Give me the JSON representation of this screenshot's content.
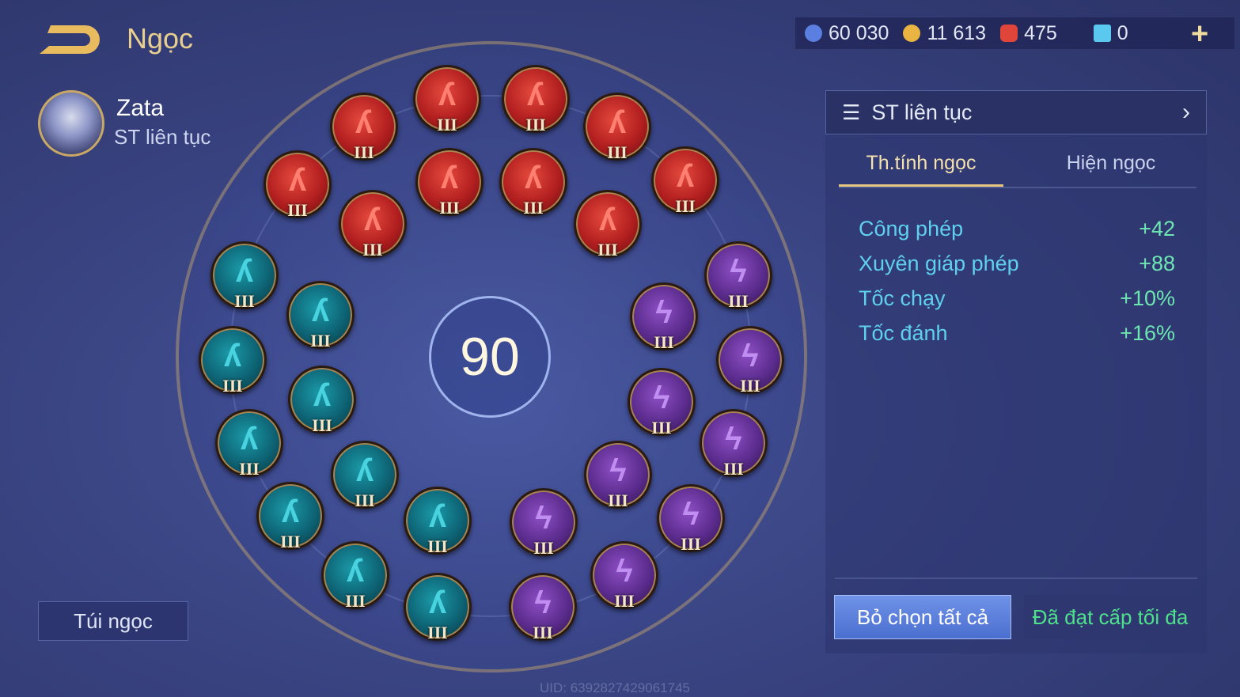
{
  "header": {
    "title": "Ngọc",
    "back_icon": "back-arrow-icon"
  },
  "hero": {
    "name": "Zata",
    "set_name": "ST liên tục"
  },
  "resources": [
    {
      "icon": "blue-coin-icon",
      "value": "60 030",
      "color": "#5a7fe0"
    },
    {
      "icon": "gold-coin-icon",
      "value": "11 613",
      "color": "#e9b441"
    },
    {
      "icon": "red-gem-icon",
      "value": "475",
      "color": "#e0453a"
    },
    {
      "icon": "card-icon",
      "value": "0",
      "color": "#5bc8f0"
    }
  ],
  "plus_label": "+",
  "board": {
    "level": "90",
    "gems": [
      {
        "type": "red",
        "level": "III"
      },
      {
        "type": "red",
        "level": "III"
      },
      {
        "type": "red",
        "level": "III"
      },
      {
        "type": "red",
        "level": "III"
      },
      {
        "type": "red",
        "level": "III"
      },
      {
        "type": "red",
        "level": "III"
      },
      {
        "type": "red",
        "level": "III"
      },
      {
        "type": "red",
        "level": "III"
      },
      {
        "type": "red",
        "level": "III"
      },
      {
        "type": "red",
        "level": "III"
      },
      {
        "type": "teal",
        "level": "III"
      },
      {
        "type": "teal",
        "level": "III"
      },
      {
        "type": "teal",
        "level": "III"
      },
      {
        "type": "teal",
        "level": "III"
      },
      {
        "type": "teal",
        "level": "III"
      },
      {
        "type": "teal",
        "level": "III"
      },
      {
        "type": "teal",
        "level": "III"
      },
      {
        "type": "teal",
        "level": "III"
      },
      {
        "type": "teal",
        "level": "III"
      },
      {
        "type": "teal",
        "level": "III"
      },
      {
        "type": "purple",
        "level": "III"
      },
      {
        "type": "purple",
        "level": "III"
      },
      {
        "type": "purple",
        "level": "III"
      },
      {
        "type": "purple",
        "level": "III"
      },
      {
        "type": "purple",
        "level": "III"
      },
      {
        "type": "purple",
        "level": "III"
      },
      {
        "type": "purple",
        "level": "III"
      },
      {
        "type": "purple",
        "level": "III"
      },
      {
        "type": "purple",
        "level": "III"
      },
      {
        "type": "purple",
        "level": "III"
      }
    ]
  },
  "bag_button": "Túi ngọc",
  "uid": "UID: 6392827429061745",
  "panel": {
    "preset": "ST liên tục",
    "tabs": [
      "Th.tính ngọc",
      "Hiện ngọc"
    ],
    "stats": [
      {
        "name": "Công phép",
        "value": "+42"
      },
      {
        "name": "Xuyên giáp phép",
        "value": "+88"
      },
      {
        "name": "Tốc chạy",
        "value": "+10%"
      },
      {
        "name": "Tốc đánh",
        "value": "+16%"
      }
    ],
    "unselect_all": "Bỏ chọn tất cả",
    "max_level": "Đã đạt cấp tối đa"
  }
}
